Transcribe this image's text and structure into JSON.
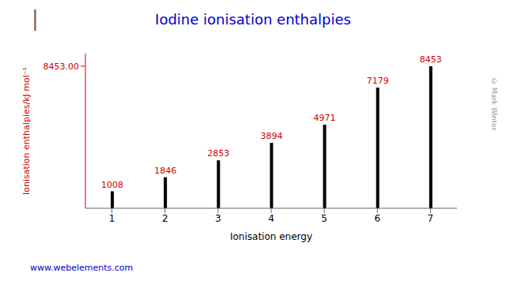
{
  "chart_data": {
    "type": "bar",
    "title": "Iodine ionisation enthalpies",
    "xlabel": "Ionisation energy",
    "ylabel": "Ionisation enthalpies/kJ mol⁻¹",
    "categories": [
      "1",
      "2",
      "3",
      "4",
      "5",
      "6",
      "7"
    ],
    "values": [
      1008,
      1846,
      2853,
      3894,
      4971,
      7179,
      8453
    ],
    "color": "#000000",
    "ylim": [
      0,
      9200
    ],
    "yticks": [
      {
        "value": 8453,
        "label": "8453.00"
      }
    ],
    "data_labels": true,
    "grid": false,
    "annotations": [
      "|",
      "www.webelements.com",
      "© Mark Winter"
    ]
  }
}
